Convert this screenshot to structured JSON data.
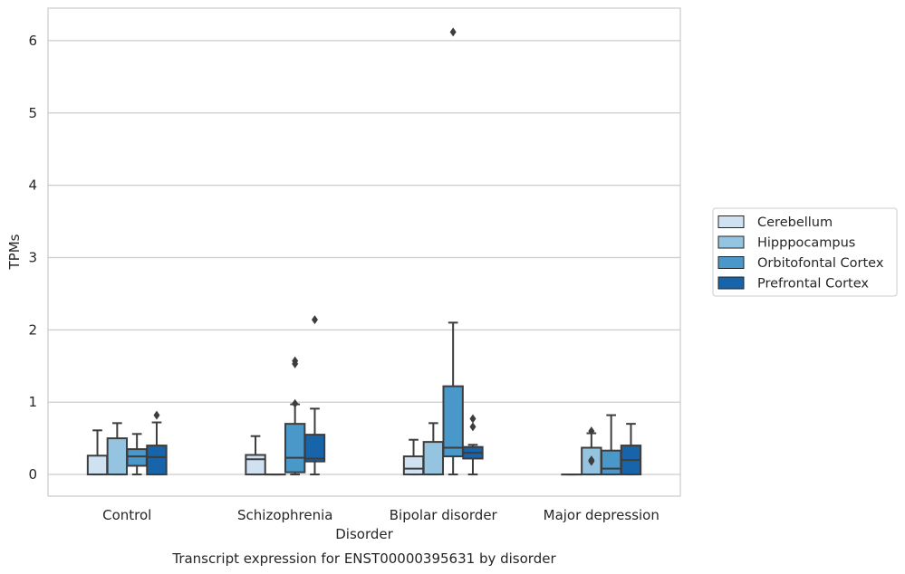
{
  "chart_data": {
    "type": "box",
    "title": "Transcript expression for ENST00000395631 by disorder",
    "xlabel": "Disorder",
    "ylabel": "TPMs",
    "ylim": [
      -0.3,
      6.45
    ],
    "yticks": [
      0,
      1,
      2,
      3,
      4,
      5,
      6
    ],
    "ytick_labels": [
      "0",
      "1",
      "2",
      "3",
      "4",
      "5",
      "6"
    ],
    "grid": "horizontal",
    "legend_position": "right",
    "categories": [
      "Control",
      "Schizophrenia",
      "Bipolar disorder",
      "Major depression"
    ],
    "series": [
      {
        "name": "Cerebellum",
        "color": "#d0e1f2",
        "boxes": [
          {
            "whislo": 0.0,
            "q1": 0.0,
            "med": 0.0,
            "q3": 0.26,
            "whishi": 0.61,
            "fliers": []
          },
          {
            "whislo": 0.0,
            "q1": 0.0,
            "med": 0.21,
            "q3": 0.27,
            "whishi": 0.53,
            "fliers": []
          },
          {
            "whislo": 0.0,
            "q1": 0.0,
            "med": 0.08,
            "q3": 0.25,
            "whishi": 0.48,
            "fliers": []
          },
          {
            "whislo": 0.0,
            "q1": 0.0,
            "med": 0.0,
            "q3": 0.0,
            "whishi": 0.0,
            "fliers": []
          }
        ]
      },
      {
        "name": "Hipppocampus",
        "color": "#94c4df",
        "boxes": [
          {
            "whislo": 0.0,
            "q1": 0.0,
            "med": 0.0,
            "q3": 0.5,
            "whishi": 0.71,
            "fliers": []
          },
          {
            "whislo": 0.0,
            "q1": 0.0,
            "med": 0.0,
            "q3": 0.0,
            "whishi": 0.0,
            "fliers": []
          },
          {
            "whislo": 0.0,
            "q1": 0.0,
            "med": 0.0,
            "q3": 0.45,
            "whishi": 0.71,
            "fliers": []
          },
          {
            "whislo": 0.0,
            "q1": 0.0,
            "med": 0.0,
            "q3": 0.37,
            "whishi": 0.57,
            "fliers": [
              0.6,
              0.2,
              0.18
            ]
          }
        ]
      },
      {
        "name": "Orbitofontal Cortex",
        "color": "#4a98c9",
        "boxes": [
          {
            "whislo": 0.0,
            "q1": 0.12,
            "med": 0.25,
            "q3": 0.35,
            "whishi": 0.56,
            "fliers": []
          },
          {
            "whislo": 0.0,
            "q1": 0.03,
            "med": 0.23,
            "q3": 0.7,
            "whishi": 0.97,
            "fliers": [
              1.57,
              1.53,
              0.98
            ]
          },
          {
            "whislo": 0.0,
            "q1": 0.25,
            "med": 0.37,
            "q3": 1.22,
            "whishi": 2.1,
            "fliers": [
              6.12
            ]
          },
          {
            "whislo": 0.0,
            "q1": 0.0,
            "med": 0.08,
            "q3": 0.33,
            "whishi": 0.82,
            "fliers": []
          }
        ]
      },
      {
        "name": "Prefrontal Cortex",
        "color": "#1764ab",
        "boxes": [
          {
            "whislo": 0.0,
            "q1": 0.0,
            "med": 0.24,
            "q3": 0.4,
            "whishi": 0.72,
            "fliers": [
              0.82
            ]
          },
          {
            "whislo": 0.0,
            "q1": 0.18,
            "med": 0.22,
            "q3": 0.55,
            "whishi": 0.91,
            "fliers": [
              2.14
            ]
          },
          {
            "whislo": 0.0,
            "q1": 0.22,
            "med": 0.3,
            "q3": 0.38,
            "whishi": 0.41,
            "fliers": [
              0.77,
              0.66
            ]
          },
          {
            "whislo": 0.0,
            "q1": 0.0,
            "med": 0.2,
            "q3": 0.4,
            "whishi": 0.7,
            "fliers": []
          }
        ]
      }
    ]
  }
}
